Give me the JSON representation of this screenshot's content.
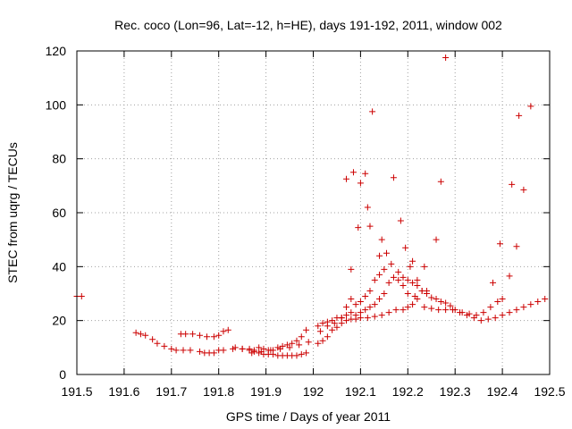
{
  "chart_data": {
    "type": "scatter",
    "title": "Rec. coco (Lon=96, Lat=-12, h=HE), days 191-192, 2011, window 002",
    "xlabel": "GPS time / Days of year 2011",
    "ylabel": "STEC from uqrg / TECUs",
    "xlim": [
      191.5,
      192.5
    ],
    "ylim": [
      0,
      120
    ],
    "xticks": [
      191.5,
      191.6,
      191.7,
      191.8,
      191.9,
      192,
      192.1,
      192.2,
      192.3,
      192.4,
      192.5
    ],
    "xtick_labels": [
      "191.5",
      "191.6",
      "191.7",
      "191.8",
      "191.9",
      "192",
      "192.1",
      "192.2",
      "192.3",
      "192.4",
      "192.5"
    ],
    "yticks": [
      0,
      20,
      40,
      60,
      80,
      100,
      120
    ],
    "ytick_labels": [
      "0",
      "20",
      "40",
      "60",
      "80",
      "100",
      "120"
    ],
    "grid": true,
    "marker": "+",
    "color": "#cc0000",
    "series": [
      {
        "x": [
          191.5,
          191.51,
          191.625,
          191.635,
          191.645,
          191.66,
          191.67,
          191.685,
          191.7,
          191.71,
          191.725,
          191.74,
          191.76,
          191.77,
          191.78,
          191.79,
          191.8,
          191.81,
          191.83,
          191.85,
          191.865,
          191.875,
          191.885,
          191.895,
          191.905,
          191.915,
          191.925,
          191.935,
          191.945,
          191.955,
          191.965,
          191.975,
          191.985,
          192.01,
          192.02,
          192.03,
          192.04,
          192.05,
          192.06,
          192.07,
          192.08,
          192.09,
          192.1,
          192.115,
          192.13,
          192.145,
          192.16,
          192.175,
          192.19,
          192.2,
          192.21,
          192.22,
          192.235,
          192.25,
          192.265,
          192.28,
          192.295,
          192.31,
          192.325,
          192.34,
          192.355,
          192.37,
          192.385,
          192.4,
          192.415,
          192.43,
          192.445,
          192.46,
          192.475,
          192.49
        ],
        "y": [
          29,
          29,
          15.5,
          15,
          14.5,
          13,
          11.5,
          10.5,
          9.5,
          9,
          9,
          9,
          8.5,
          8,
          8,
          8,
          9,
          9,
          9.5,
          9.5,
          9,
          8.5,
          8,
          7.5,
          7.5,
          7.5,
          7,
          7,
          7,
          7,
          7,
          7.5,
          8,
          11.5,
          12.5,
          14,
          16.5,
          17.5,
          19,
          20,
          20.5,
          20.5,
          21,
          21,
          21.5,
          22,
          23,
          24,
          24,
          25,
          26,
          28,
          25,
          24.5,
          24,
          24,
          24,
          23,
          22,
          21,
          20,
          20.5,
          21,
          22,
          23,
          24,
          25,
          26,
          27,
          28
        ]
      },
      {
        "x": [
          191.72,
          191.73,
          191.745,
          191.76,
          191.775,
          191.79,
          191.8,
          191.81,
          191.82,
          191.835,
          191.85,
          191.865,
          191.875,
          191.885,
          191.895,
          191.905,
          191.915,
          191.925,
          191.935,
          191.945,
          191.955,
          191.965,
          191.975,
          191.985,
          192.01,
          192.02,
          192.03,
          192.04,
          192.05,
          192.06,
          192.07,
          192.08,
          192.09,
          192.1,
          192.11,
          192.12,
          192.13,
          192.14,
          192.15,
          192.16,
          192.17,
          192.18,
          192.19,
          192.2,
          192.21,
          192.22,
          192.23,
          192.24,
          192.25,
          192.26,
          192.27,
          192.28,
          192.29,
          192.3,
          192.315,
          192.33,
          192.345,
          192.36,
          192.375,
          192.39
        ],
        "y": [
          15,
          15,
          15,
          14.5,
          14,
          14,
          14.5,
          16,
          16.5,
          10,
          9.5,
          9.5,
          9,
          10,
          9.5,
          9,
          9,
          10,
          10.5,
          11,
          11.5,
          12.5,
          14,
          16.5,
          18,
          19,
          19.5,
          20,
          21,
          21,
          22,
          23,
          22,
          23,
          24,
          25,
          26,
          28,
          30,
          34,
          36,
          38,
          36,
          35,
          34,
          33,
          31,
          30,
          28.5,
          28,
          27,
          26.5,
          25.5,
          24,
          23,
          22.5,
          22,
          23,
          25,
          27
        ]
      },
      {
        "x": [
          191.87,
          191.89,
          191.91,
          191.93,
          191.95,
          191.97,
          191.99,
          192.015,
          192.03,
          192.045,
          192.06,
          192.07,
          192.08,
          192.09,
          192.1,
          192.11,
          192.12,
          192.13,
          192.14,
          192.15,
          192.165,
          192.18,
          192.19,
          192.2,
          192.215,
          192.23
        ],
        "y": [
          8,
          8.5,
          9,
          9.5,
          10,
          11,
          12,
          16,
          18,
          19,
          21,
          25,
          28,
          26,
          27,
          29,
          31,
          35,
          37,
          39,
          41,
          35,
          33,
          30,
          29,
          31
        ]
      },
      {
        "x": [
          192.07,
          192.08,
          192.085,
          192.095,
          192.1,
          192.11,
          192.115,
          192.12,
          192.125,
          192.14,
          192.145,
          192.155,
          192.17,
          192.185,
          192.195,
          192.205,
          192.21,
          192.22,
          192.235,
          192.24,
          192.26,
          192.27,
          192.28,
          192.38,
          192.395,
          192.4,
          192.415,
          192.42,
          192.43,
          192.435,
          192.445,
          192.46
        ],
        "y": [
          72.5,
          39,
          75,
          54.5,
          71,
          74.5,
          62,
          55,
          97.5,
          44,
          50,
          45,
          73,
          57,
          47,
          40,
          42,
          35,
          40,
          31,
          50,
          71.5,
          117.5,
          34,
          48.5,
          28,
          36.5,
          70.5,
          47.5,
          96,
          68.5,
          99.5
        ]
      }
    ]
  }
}
